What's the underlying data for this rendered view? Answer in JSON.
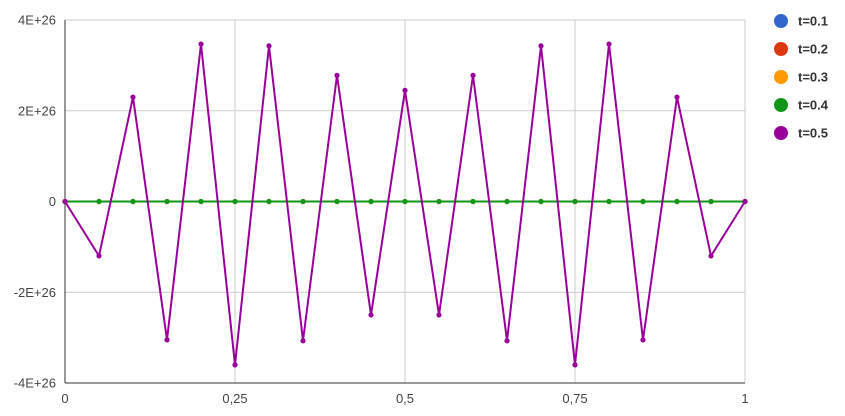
{
  "chart_data": {
    "type": "line",
    "title": "",
    "xlabel": "",
    "ylabel": "",
    "xlim": [
      0,
      1
    ],
    "ylim": [
      -4e+26,
      4e+26
    ],
    "x_ticks": [
      0,
      0.25,
      0.5,
      0.75,
      1
    ],
    "x_tick_labels": [
      "0",
      "0,25",
      "0,5",
      "0,75",
      "1"
    ],
    "y_ticks": [
      -4e+26,
      -2e+26,
      0,
      2e+26,
      4e+26
    ],
    "y_tick_labels": [
      "-4E+26",
      "-2E+26",
      "0",
      "2E+26",
      "4E+26"
    ],
    "grid": true,
    "legend_position": "right",
    "x": [
      0,
      0.05,
      0.1,
      0.15,
      0.2,
      0.25,
      0.3,
      0.35,
      0.4,
      0.45,
      0.5,
      0.55,
      0.6,
      0.65,
      0.7,
      0.75,
      0.8,
      0.85,
      0.9,
      0.95,
      1
    ],
    "series": [
      {
        "name": "t=0.1",
        "color": "#3366cc",
        "values": [
          0,
          0,
          0,
          0,
          0,
          0,
          0,
          0,
          0,
          0,
          0,
          0,
          0,
          0,
          0,
          0,
          0,
          0,
          0,
          0,
          0
        ]
      },
      {
        "name": "t=0.2",
        "color": "#dc3912",
        "values": [
          0,
          0,
          0,
          0,
          0,
          0,
          0,
          0,
          0,
          0,
          0,
          0,
          0,
          0,
          0,
          0,
          0,
          0,
          0,
          0,
          0
        ]
      },
      {
        "name": "t=0.3",
        "color": "#ff9900",
        "values": [
          0,
          0,
          0,
          0,
          0,
          0,
          0,
          0,
          0,
          0,
          0,
          0,
          0,
          0,
          0,
          0,
          0,
          0,
          0,
          0,
          0
        ]
      },
      {
        "name": "t=0.4",
        "color": "#109618",
        "values": [
          0,
          0,
          0,
          0,
          0,
          0,
          0,
          0,
          0,
          0,
          0,
          0,
          0,
          0,
          0,
          0,
          0,
          0,
          0,
          0,
          0
        ]
      },
      {
        "name": "t=0.5",
        "color": "#990099",
        "values": [
          0,
          -1.2e+26,
          2.3e+26,
          -3.05e+26,
          3.47e+26,
          -3.6e+26,
          3.43e+26,
          -3.07e+26,
          2.78e+26,
          -2.5e+26,
          2.45e+26,
          -2.5e+26,
          2.78e+26,
          -3.07e+26,
          3.43e+26,
          -3.6e+26,
          3.47e+26,
          -3.05e+26,
          2.3e+26,
          -1.2e+26,
          0
        ]
      }
    ]
  }
}
